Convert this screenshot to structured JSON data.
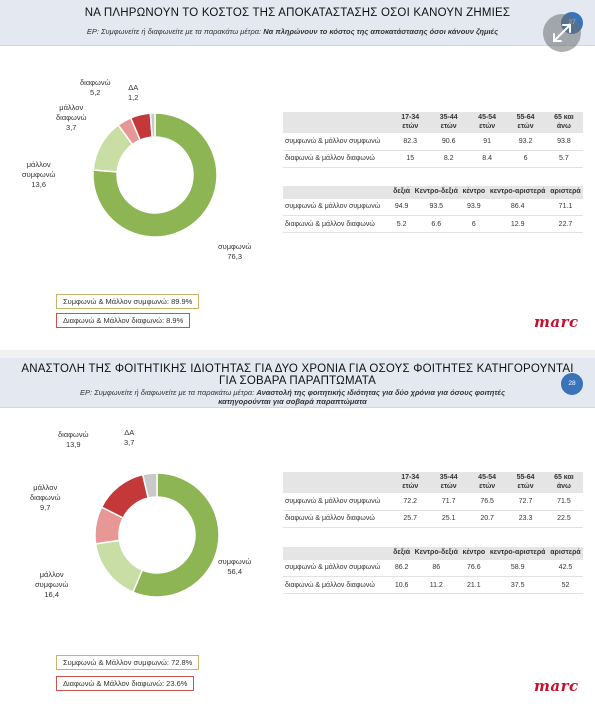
{
  "ui": {
    "expand_icon": "expand-arrows-icon",
    "badge_color": "#3a73b8",
    "pie_colors": [
      "#8db553",
      "#c8dea4",
      "#e89797",
      "#c4383a",
      "#c9c9c9"
    ]
  },
  "slides": [
    {
      "title": "ΝΑ ΠΛΗΡΩΝΟΥΝ ΤΟ ΚΟΣΤΟΣ ΤΗΣ ΑΠΟΚΑΤΑΣΤΑΣΗΣ ΟΣΟΙ ΚΑΝΟΥΝ ΖΗΜΙΕΣ",
      "title_line2": "",
      "subtitle_prefix": "ΕΡ: Συμφωνείτε ή διαφωνείτε με τα παρακάτω μέτρα: ",
      "subtitle_bold": "Να πληρώνουν το κόστος της αποκατάστασης όσοι κάνουν ζημιές",
      "subtitle_bold2": "",
      "page_number": "27",
      "summary_agree": "Συμφωνώ & Μάλλον συμφωνώ: 89.9%",
      "summary_disagree": "Διαφωνώ & Μάλλον διαφωνώ: 8.9%",
      "logo": "marc"
    },
    {
      "title": "ΑΝΑΣΤΟΛΗ ΤΗΣ ΦΟΙΤΗΤΙΚΗΣ ΙΔΙΟΤΗΤΑΣ ΓΙΑ ΔΥΟ ΧΡΟΝΙΑ ΓΙΑ ΟΣΟΥΣ ΦΟΙΤΗΤΕΣ ΚΑΤΗΓΟΡΟΥΝΤΑΙ",
      "title_line2": "ΓΙΑ ΣΟΒΑΡΑ ΠΑΡΑΠΤΩΜΑΤΑ",
      "subtitle_prefix": "ΕΡ: Συμφωνείτε ή διαφωνείτε με τα παρακάτω μέτρα: ",
      "subtitle_bold": "Αναστολή της φοιτητικής ιδιότητας για δύο χρόνια για όσους φοιτητές",
      "subtitle_bold2": "κατηγορούνται για σοβαρά παραπτώματα",
      "page_number": "28",
      "summary_agree": "Συμφωνώ & Μάλλον συμφωνώ: 72.8%",
      "summary_disagree": "Διαφωνώ & Μάλλον διαφωνώ: 23.6%",
      "logo": "marc"
    }
  ],
  "chart_data": [
    {
      "type": "pie",
      "title": "ΝΑ ΠΛΗΡΩΝΟΥΝ ΤΟ ΚΟΣΤΟΣ ΤΗΣ ΑΠΟΚΑΤΑΣΤΑΣΗΣ ΟΣΟΙ ΚΑΝΟΥΝ ΖΗΜΙΕΣ",
      "donut": true,
      "slices": [
        {
          "label": "συμφωνώ",
          "value": 76.3,
          "value_text": "76,3",
          "color": "#8db553"
        },
        {
          "label": "μάλλον συμφωνώ",
          "value": 13.6,
          "value_text": "13,6",
          "color": "#c8dea4"
        },
        {
          "label": "μάλλον διαφωνώ",
          "value": 3.7,
          "value_text": "3,7",
          "color": "#e89797"
        },
        {
          "label": "διαφωνώ",
          "value": 5.2,
          "value_text": "5,2",
          "color": "#c4383a"
        },
        {
          "label": "ΔΑ",
          "value": 1.2,
          "value_text": "1,2",
          "color": "#c9c9c9"
        }
      ]
    },
    {
      "type": "table",
      "title": "",
      "columns": [
        "17-34 ετών",
        "35-44 ετών",
        "45-54 ετών",
        "55-64 ετών",
        "65 και άνω"
      ],
      "rows": [
        {
          "label": "συμφωνώ & μάλλον συμφωνώ",
          "values": [
            "82.3",
            "90.6",
            "91",
            "93.2",
            "93.8"
          ]
        },
        {
          "label": "διαφωνώ & μάλλον διαφωνώ",
          "values": [
            "15",
            "8.2",
            "8.4",
            "6",
            "5.7"
          ]
        }
      ]
    },
    {
      "type": "table",
      "title": "",
      "columns": [
        "δεξιά",
        "Κεντρο-δεξιά",
        "κέντρο",
        "κεντρο-αριστερά",
        "αριστερά"
      ],
      "rows": [
        {
          "label": "συμφωνώ & μάλλον συμφωνώ",
          "values": [
            "94.9",
            "93.5",
            "93.9",
            "86.4",
            "71.1"
          ]
        },
        {
          "label": "διαφωνώ & μάλλον διαφωνώ",
          "values": [
            "5.2",
            "6.6",
            "6",
            "12.9",
            "22.7"
          ]
        }
      ]
    },
    {
      "type": "pie",
      "title": "ΑΝΑΣΤΟΛΗ ΤΗΣ ΦΟΙΤΗΤΙΚΗΣ ΙΔΙΟΤΗΤΑΣ ΓΙΑ ΔΥΟ ΧΡΟΝΙΑ ΓΙΑ ΟΣΟΥΣ ΦΟΙΤΗΤΕΣ ΚΑΤΗΓΟΡΟΥΝΤΑΙ ΓΙΑ ΣΟΒΑΡΑ ΠΑΡΑΠΤΩΜΑΤΑ",
      "donut": true,
      "slices": [
        {
          "label": "συμφωνώ",
          "value": 56.4,
          "value_text": "56,4",
          "color": "#8db553"
        },
        {
          "label": "μάλλον συμφωνώ",
          "value": 16.4,
          "value_text": "16,4",
          "color": "#c8dea4"
        },
        {
          "label": "μάλλον διαφωνώ",
          "value": 9.7,
          "value_text": "9,7",
          "color": "#e89797"
        },
        {
          "label": "διαφωνώ",
          "value": 13.9,
          "value_text": "13,9",
          "color": "#c4383a"
        },
        {
          "label": "ΔΑ",
          "value": 3.7,
          "value_text": "3,7",
          "color": "#c9c9c9"
        }
      ]
    },
    {
      "type": "table",
      "title": "",
      "columns": [
        "17-34 ετών",
        "35-44 ετών",
        "45-54 ετών",
        "55-64 ετών",
        "65 και άνω"
      ],
      "rows": [
        {
          "label": "συμφωνώ & μάλλον συμφωνώ",
          "values": [
            "72.2",
            "71.7",
            "76.5",
            "72.7",
            "71.5"
          ]
        },
        {
          "label": "διαφωνώ & μάλλον διαφωνώ",
          "values": [
            "25.7",
            "25.1",
            "20.7",
            "23.3",
            "22.5"
          ]
        }
      ]
    },
    {
      "type": "table",
      "title": "",
      "columns": [
        "δεξιά",
        "Κεντρο-δεξιά",
        "κέντρο",
        "κεντρο-αριστερά",
        "αριστερά"
      ],
      "rows": [
        {
          "label": "συμφωνώ & μάλλον συμφωνώ",
          "values": [
            "86.2",
            "86",
            "76.6",
            "58.9",
            "42.5"
          ]
        },
        {
          "label": "διαφωνώ & μάλλον διαφωνώ",
          "values": [
            "10.6",
            "11.2",
            "21.1",
            "37.5",
            "52"
          ]
        }
      ]
    }
  ]
}
